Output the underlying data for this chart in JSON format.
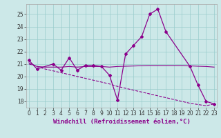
{
  "main_line_x": [
    0,
    1,
    3,
    4,
    5,
    6,
    7,
    8,
    9,
    10,
    11,
    12,
    13,
    14,
    15,
    16,
    17,
    20,
    21,
    22,
    23
  ],
  "main_line_y": [
    21.3,
    20.6,
    21.0,
    20.5,
    21.5,
    20.5,
    20.9,
    20.9,
    20.8,
    20.1,
    18.1,
    21.8,
    22.5,
    23.2,
    25.0,
    25.4,
    23.6,
    20.8,
    19.3,
    18.0,
    17.8
  ],
  "flat_line_x": [
    0,
    1,
    2,
    3,
    4,
    5,
    6,
    7,
    8,
    9,
    10,
    11,
    12,
    13,
    14,
    15,
    16,
    17,
    18,
    19,
    20,
    21,
    22,
    23
  ],
  "flat_line_y": [
    21.1,
    20.8,
    20.75,
    20.75,
    20.75,
    20.8,
    20.75,
    20.8,
    20.8,
    20.8,
    20.75,
    20.8,
    20.82,
    20.84,
    20.86,
    20.88,
    20.88,
    20.88,
    20.88,
    20.88,
    20.85,
    20.82,
    20.8,
    20.75
  ],
  "diag_line_x": [
    0,
    1,
    2,
    3,
    4,
    5,
    6,
    7,
    8,
    9,
    10,
    11,
    12,
    13,
    14,
    15,
    16,
    17,
    18,
    19,
    20,
    21,
    22,
    23
  ],
  "diag_line_y": [
    21.0,
    20.8,
    20.6,
    20.45,
    20.3,
    20.15,
    20.0,
    19.85,
    19.7,
    19.55,
    19.4,
    19.2,
    19.05,
    18.9,
    18.75,
    18.6,
    18.45,
    18.3,
    18.15,
    18.0,
    17.85,
    17.75,
    17.65,
    17.8
  ],
  "color": "#8b008b",
  "bg_color": "#cce8e8",
  "grid_color": "#99cccc",
  "ylim": [
    17.5,
    25.8
  ],
  "xlim": [
    -0.3,
    23.3
  ],
  "yticks": [
    18,
    19,
    20,
    21,
    22,
    23,
    24,
    25
  ],
  "xticks": [
    0,
    1,
    2,
    3,
    4,
    5,
    6,
    7,
    8,
    9,
    10,
    11,
    12,
    13,
    14,
    15,
    16,
    17,
    18,
    19,
    20,
    21,
    22,
    23
  ],
  "xlabel": "Windchill (Refroidissement éolien,°C)",
  "tick_fontsize": 5.5,
  "xlabel_fontsize": 6.5
}
